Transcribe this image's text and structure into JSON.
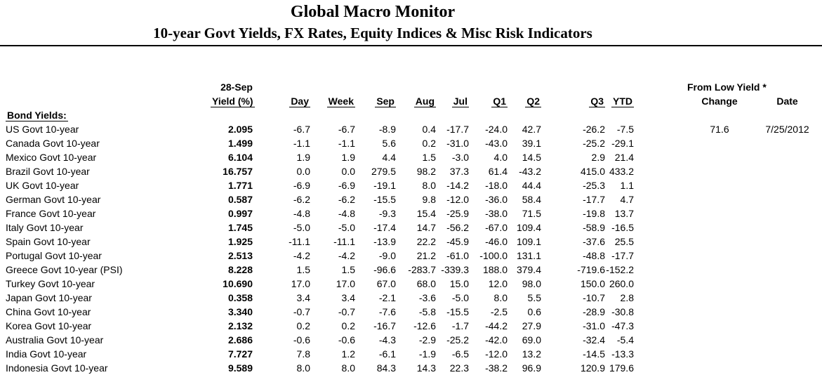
{
  "title": "Global Macro Monitor",
  "subtitle": "10-year Govt Yields, FX Rates, Equity Indices & Misc Risk Indicators",
  "table": {
    "top_headers": {
      "yield_date": "28-Sep",
      "from_low_yield": "From Low Yield *"
    },
    "columns": {
      "yield": "Yield (%)",
      "day": "Day",
      "week": "Week",
      "sep": "Sep",
      "aug": "Aug",
      "jul": "Jul",
      "q1": "Q1",
      "q2": "Q2",
      "q3": "Q3",
      "ytd": "YTD",
      "change": "Change",
      "date": "Date"
    },
    "section": "Bond Yields:",
    "rows": [
      {
        "label": "US Govt 10-year",
        "yield": "2.095",
        "day": "-6.7",
        "week": "-6.7",
        "sep": "-8.9",
        "aug": "0.4",
        "jul": "-17.7",
        "q1": "-24.0",
        "q2": "42.7",
        "q3": "-26.2",
        "ytd": "-7.5",
        "change": "71.6",
        "date": "7/25/2012"
      },
      {
        "label": "Canada Govt 10-year",
        "yield": "1.499",
        "day": "-1.1",
        "week": "-1.1",
        "sep": "5.6",
        "aug": "0.2",
        "jul": "-31.0",
        "q1": "-43.0",
        "q2": "39.1",
        "q3": "-25.2",
        "ytd": "-29.1",
        "change": "",
        "date": ""
      },
      {
        "label": "Mexico Govt 10-year",
        "yield": "6.104",
        "day": "1.9",
        "week": "1.9",
        "sep": "4.4",
        "aug": "1.5",
        "jul": "-3.0",
        "q1": "4.0",
        "q2": "14.5",
        "q3": "2.9",
        "ytd": "21.4",
        "change": "",
        "date": ""
      },
      {
        "label": "Brazil Govt 10-year",
        "yield": "16.757",
        "day": "0.0",
        "week": "0.0",
        "sep": "279.5",
        "aug": "98.2",
        "jul": "37.3",
        "q1": "61.4",
        "q2": "-43.2",
        "q3": "415.0",
        "ytd": "433.2",
        "change": "",
        "date": ""
      },
      {
        "label": "UK Govt 10-year",
        "yield": "1.771",
        "day": "-6.9",
        "week": "-6.9",
        "sep": "-19.1",
        "aug": "8.0",
        "jul": "-14.2",
        "q1": "-18.0",
        "q2": "44.4",
        "q3": "-25.3",
        "ytd": "1.1",
        "change": "",
        "date": ""
      },
      {
        "label": "German Govt 10-year",
        "yield": "0.587",
        "day": "-6.2",
        "week": "-6.2",
        "sep": "-15.5",
        "aug": "9.8",
        "jul": "-12.0",
        "q1": "-36.0",
        "q2": "58.4",
        "q3": "-17.7",
        "ytd": "4.7",
        "change": "",
        "date": ""
      },
      {
        "label": "France Govt 10-year",
        "yield": "0.997",
        "day": "-4.8",
        "week": "-4.8",
        "sep": "-9.3",
        "aug": "15.4",
        "jul": "-25.9",
        "q1": "-38.0",
        "q2": "71.5",
        "q3": "-19.8",
        "ytd": "13.7",
        "change": "",
        "date": ""
      },
      {
        "label": "Italy Govt 10-year",
        "yield": "1.745",
        "day": "-5.0",
        "week": "-5.0",
        "sep": "-17.4",
        "aug": "14.7",
        "jul": "-56.2",
        "q1": "-67.0",
        "q2": "109.4",
        "q3": "-58.9",
        "ytd": "-16.5",
        "change": "",
        "date": ""
      },
      {
        "label": "Spain Govt 10-year",
        "yield": "1.925",
        "day": "-11.1",
        "week": "-11.1",
        "sep": "-13.9",
        "aug": "22.2",
        "jul": "-45.9",
        "q1": "-46.0",
        "q2": "109.1",
        "q3": "-37.6",
        "ytd": "25.5",
        "change": "",
        "date": ""
      },
      {
        "label": "Portugal Govt 10-year",
        "yield": "2.513",
        "day": "-4.2",
        "week": "-4.2",
        "sep": "-9.0",
        "aug": "21.2",
        "jul": "-61.0",
        "q1": "-100.0",
        "q2": "131.1",
        "q3": "-48.8",
        "ytd": "-17.7",
        "change": "",
        "date": ""
      },
      {
        "label": "Greece Govt 10-year (PSI)",
        "yield": "8.228",
        "day": "1.5",
        "week": "1.5",
        "sep": "-96.6",
        "aug": "-283.7",
        "jul": "-339.3",
        "q1": "188.0",
        "q2": "379.4",
        "q3": "-719.6",
        "ytd": "-152.2",
        "change": "",
        "date": ""
      },
      {
        "label": "Turkey Govt 10-year",
        "yield": "10.690",
        "day": "17.0",
        "week": "17.0",
        "sep": "67.0",
        "aug": "68.0",
        "jul": "15.0",
        "q1": "12.0",
        "q2": "98.0",
        "q3": "150.0",
        "ytd": "260.0",
        "change": "",
        "date": ""
      },
      {
        "label": "Japan Govt 10-year",
        "yield": "0.358",
        "day": "3.4",
        "week": "3.4",
        "sep": "-2.1",
        "aug": "-3.6",
        "jul": "-5.0",
        "q1": "8.0",
        "q2": "5.5",
        "q3": "-10.7",
        "ytd": "2.8",
        "change": "",
        "date": ""
      },
      {
        "label": "China Govt 10-year",
        "yield": "3.340",
        "day": "-0.7",
        "week": "-0.7",
        "sep": "-7.6",
        "aug": "-5.8",
        "jul": "-15.5",
        "q1": "-2.5",
        "q2": "0.6",
        "q3": "-28.9",
        "ytd": "-30.8",
        "change": "",
        "date": ""
      },
      {
        "label": "Korea Govt 10-year",
        "yield": "2.132",
        "day": "0.2",
        "week": "0.2",
        "sep": "-16.7",
        "aug": "-12.6",
        "jul": "-1.7",
        "q1": "-44.2",
        "q2": "27.9",
        "q3": "-31.0",
        "ytd": "-47.3",
        "change": "",
        "date": ""
      },
      {
        "label": "Australia Govt 10-year",
        "yield": "2.686",
        "day": "-0.6",
        "week": "-0.6",
        "sep": "-4.3",
        "aug": "-2.9",
        "jul": "-25.2",
        "q1": "-42.0",
        "q2": "69.0",
        "q3": "-32.4",
        "ytd": "-5.4",
        "change": "",
        "date": ""
      },
      {
        "label": "India Govt 10-year",
        "yield": "7.727",
        "day": "7.8",
        "week": "1.2",
        "sep": "-6.1",
        "aug": "-1.9",
        "jul": "-6.5",
        "q1": "-12.0",
        "q2": "13.2",
        "q3": "-14.5",
        "ytd": "-13.3",
        "change": "",
        "date": ""
      },
      {
        "label": "Indonesia Govt 10-year",
        "yield": "9.589",
        "day": "8.0",
        "week": "8.0",
        "sep": "84.3",
        "aug": "14.3",
        "jul": "22.3",
        "q1": "-38.2",
        "q2": "96.9",
        "q3": "120.9",
        "ytd": "179.6",
        "change": "",
        "date": ""
      }
    ]
  }
}
